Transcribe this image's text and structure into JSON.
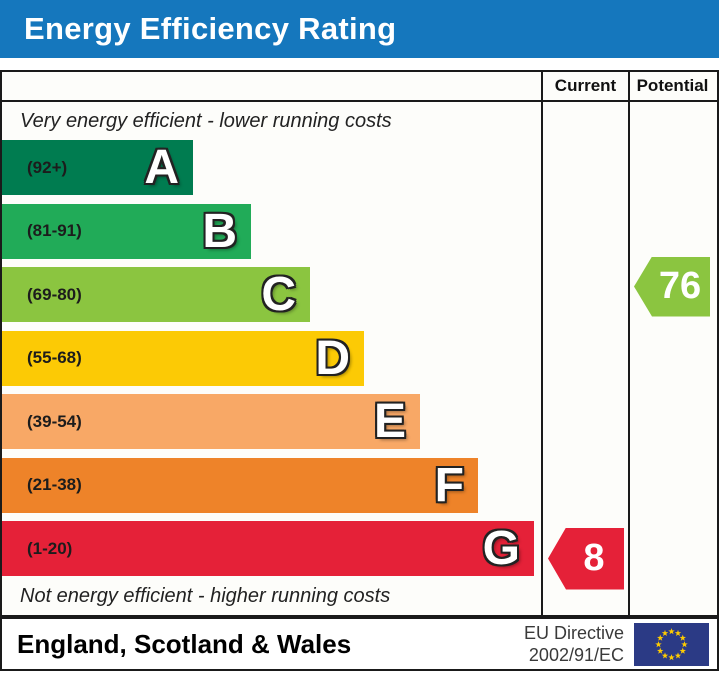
{
  "title": "Energy Efficiency Rating",
  "title_bar_color": "#1577bd",
  "columns": {
    "current": "Current",
    "potential": "Potential"
  },
  "chart_data": {
    "type": "bar",
    "subtype": "epc-energy-efficiency-rating",
    "title": "Energy Efficiency Rating",
    "top_note": "Very energy efficient - lower running costs",
    "bottom_note": "Not energy efficient - higher running costs",
    "bands": [
      {
        "letter": "A",
        "range": "(92+)",
        "range_min": 92,
        "range_max": 100,
        "color": "#007c50",
        "width_pct": 35.5
      },
      {
        "letter": "B",
        "range": "(81-91)",
        "range_min": 81,
        "range_max": 91,
        "color": "#21ab58",
        "width_pct": 46.2
      },
      {
        "letter": "C",
        "range": "(69-80)",
        "range_min": 69,
        "range_max": 80,
        "color": "#8bc540",
        "width_pct": 57.1
      },
      {
        "letter": "D",
        "range": "(55-68)",
        "range_min": 55,
        "range_max": 68,
        "color": "#fcca05",
        "width_pct": 67.1
      },
      {
        "letter": "E",
        "range": "(39-54)",
        "range_min": 39,
        "range_max": 54,
        "color": "#f8a866",
        "width_pct": 77.6
      },
      {
        "letter": "F",
        "range": "(21-38)",
        "range_min": 21,
        "range_max": 38,
        "color": "#ee8329",
        "width_pct": 88.4
      },
      {
        "letter": "G",
        "range": "(1-20)",
        "range_min": 1,
        "range_max": 20,
        "color": "#e52138",
        "width_pct": 98.7
      }
    ],
    "current": {
      "value": 8,
      "band": "G",
      "color": "#e52138"
    },
    "potential": {
      "value": 76,
      "band": "C",
      "color": "#8bc540"
    }
  },
  "footer": {
    "region": "England, Scotland & Wales",
    "directive_line1": "EU Directive",
    "directive_line2": "2002/91/EC",
    "eu_flag": {
      "background": "#2b3a85",
      "stars": "#ffcc00"
    }
  }
}
